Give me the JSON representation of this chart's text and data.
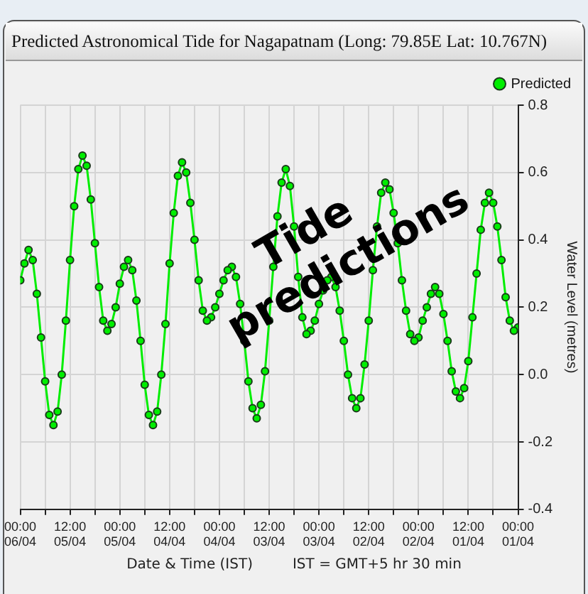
{
  "chart_data": {
    "type": "line",
    "title": "Predicted Astronomical Tide for Nagapatnam (Long: 79.85E  Lat: 10.767N)",
    "xlabel": "Date & Time (IST)",
    "ylabel": "Water Level (metres)",
    "annotations": [
      "IST = GMT+5 hr 30 min",
      "Tide predictions"
    ],
    "x": [
      "--04-01T00:00",
      "--04-01T01:00",
      "--04-01T02:00",
      "--04-01T03:00",
      "--04-01T04:00",
      "--04-01T05:00",
      "--04-01T06:00",
      "--04-01T07:00",
      "--04-01T08:00",
      "--04-01T09:00",
      "--04-01T10:00",
      "--04-01T11:00",
      "--04-01T12:00",
      "--04-01T13:00",
      "--04-01T14:00",
      "--04-01T15:00",
      "--04-01T16:00",
      "--04-01T17:00",
      "--04-01T18:00",
      "--04-01T19:00",
      "--04-01T20:00",
      "--04-01T21:00",
      "--04-01T22:00",
      "--04-01T23:00",
      "--04-02T00:00",
      "--04-02T01:00",
      "--04-02T02:00",
      "--04-02T03:00",
      "--04-02T04:00",
      "--04-02T05:00",
      "--04-02T06:00",
      "--04-02T07:00",
      "--04-02T08:00",
      "--04-02T09:00",
      "--04-02T10:00",
      "--04-02T11:00",
      "--04-02T12:00",
      "--04-02T13:00",
      "--04-02T14:00",
      "--04-02T15:00",
      "--04-02T16:00",
      "--04-02T17:00",
      "--04-02T18:00",
      "--04-02T19:00",
      "--04-02T20:00",
      "--04-02T21:00",
      "--04-02T22:00",
      "--04-02T23:00",
      "--04-03T00:00",
      "--04-03T01:00",
      "--04-03T02:00",
      "--04-03T03:00",
      "--04-03T04:00",
      "--04-03T05:00",
      "--04-03T06:00",
      "--04-03T07:00",
      "--04-03T08:00",
      "--04-03T09:00",
      "--04-03T10:00",
      "--04-03T11:00",
      "--04-03T12:00",
      "--04-03T13:00",
      "--04-03T14:00",
      "--04-03T15:00",
      "--04-03T16:00",
      "--04-03T17:00",
      "--04-03T18:00",
      "--04-03T19:00",
      "--04-03T20:00",
      "--04-03T21:00",
      "--04-03T22:00",
      "--04-03T23:00",
      "--04-04T00:00",
      "--04-04T01:00",
      "--04-04T02:00",
      "--04-04T03:00",
      "--04-04T04:00",
      "--04-04T05:00",
      "--04-04T06:00",
      "--04-04T07:00",
      "--04-04T08:00",
      "--04-04T09:00",
      "--04-04T10:00",
      "--04-04T11:00",
      "--04-04T12:00",
      "--04-04T13:00",
      "--04-04T14:00",
      "--04-04T15:00",
      "--04-04T16:00",
      "--04-04T17:00",
      "--04-04T18:00",
      "--04-04T19:00",
      "--04-04T20:00",
      "--04-04T21:00",
      "--04-04T22:00",
      "--04-04T23:00",
      "--04-05T00:00",
      "--04-05T01:00",
      "--04-05T02:00",
      "--04-05T03:00",
      "--04-05T04:00",
      "--04-05T05:00",
      "--04-05T06:00",
      "--04-05T07:00",
      "--04-05T08:00",
      "--04-05T09:00",
      "--04-05T10:00",
      "--04-05T11:00",
      "--04-05T12:00",
      "--04-05T13:00",
      "--04-05T14:00",
      "--04-05T15:00",
      "--04-05T16:00",
      "--04-05T17:00",
      "--04-05T18:00",
      "--04-05T19:00",
      "--04-05T20:00",
      "--04-05T21:00",
      "--04-05T22:00",
      "--04-05T23:00",
      "--04-06T00:00"
    ],
    "series": [
      {
        "name": "Predicted",
        "color": "#00ee00",
        "values": [
          0.14,
          0.13,
          0.16,
          0.23,
          0.34,
          0.44,
          0.51,
          0.54,
          0.51,
          0.43,
          0.3,
          0.17,
          0.04,
          -0.04,
          -0.07,
          -0.05,
          0.01,
          0.1,
          0.18,
          0.24,
          0.26,
          0.24,
          0.2,
          0.16,
          0.11,
          0.1,
          0.12,
          0.19,
          0.28,
          0.39,
          0.48,
          0.55,
          0.57,
          0.54,
          0.44,
          0.31,
          0.16,
          0.03,
          -0.07,
          -0.1,
          -0.07,
          0.0,
          0.1,
          0.19,
          0.26,
          0.29,
          0.28,
          0.25,
          0.21,
          0.16,
          0.13,
          0.12,
          0.17,
          0.29,
          0.44,
          0.56,
          0.61,
          0.57,
          0.47,
          0.32,
          0.16,
          0.01,
          -0.09,
          -0.13,
          -0.1,
          -0.02,
          0.1,
          0.21,
          0.29,
          0.32,
          0.31,
          0.28,
          0.24,
          0.2,
          0.17,
          0.16,
          0.19,
          0.28,
          0.4,
          0.51,
          0.6,
          0.63,
          0.59,
          0.48,
          0.33,
          0.15,
          0.0,
          -0.11,
          -0.15,
          -0.12,
          -0.03,
          0.1,
          0.22,
          0.31,
          0.34,
          0.32,
          0.27,
          0.2,
          0.15,
          0.13,
          0.16,
          0.26,
          0.39,
          0.52,
          0.62,
          0.65,
          0.61,
          0.5,
          0.34,
          0.16,
          0.0,
          -0.11,
          -0.15,
          -0.12,
          -0.02,
          0.11,
          0.24,
          0.34,
          0.37,
          0.33,
          0.28
        ]
      }
    ],
    "xlim": [
      "--04-06T00:00",
      "--04-01T00:00"
    ],
    "xticks": [
      {
        "value": "--04-06T00:00",
        "label": "00:00\n06/04"
      },
      {
        "value": "--04-05T18:00",
        "label": null
      },
      {
        "value": "--04-05T12:00",
        "label": "12:00\n05/04"
      },
      {
        "value": "--04-05T06:00",
        "label": null
      },
      {
        "value": "--04-05T00:00",
        "label": "00:00\n05/04"
      },
      {
        "value": "--04-04T18:00",
        "label": null
      },
      {
        "value": "--04-04T12:00",
        "label": "12:00\n04/04"
      },
      {
        "value": "--04-04T06:00",
        "label": null
      },
      {
        "value": "--04-04T00:00",
        "label": "00:00\n04/04"
      },
      {
        "value": "--04-03T18:00",
        "label": null
      },
      {
        "value": "--04-03T12:00",
        "label": "12:00\n03/04"
      },
      {
        "value": "--04-03T06:00",
        "label": null
      },
      {
        "value": "--04-03T00:00",
        "label": "00:00\n03/04"
      },
      {
        "value": "--04-02T18:00",
        "label": null
      },
      {
        "value": "--04-02T12:00",
        "label": "12:00\n02/04"
      },
      {
        "value": "--04-02T06:00",
        "label": null
      },
      {
        "value": "--04-02T00:00",
        "label": "00:00\n02/04"
      },
      {
        "value": "--04-01T18:00",
        "label": null
      },
      {
        "value": "--04-01T12:00",
        "label": "12:00\n01/04"
      },
      {
        "value": "--04-01T06:00",
        "label": null
      },
      {
        "value": "--04-01T00:00",
        "label": "00:00\n01/04"
      }
    ],
    "ylim": [
      -0.4,
      0.8
    ],
    "yticks": [
      {
        "value": -0.4,
        "label": "-0.4"
      },
      {
        "value": -0.2,
        "label": "-0.2"
      },
      {
        "value": 0,
        "label": "0.0"
      },
      {
        "value": 0.2,
        "label": "0.2"
      },
      {
        "value": 0.4,
        "label": "0.4"
      },
      {
        "value": 0.6,
        "label": "0.6"
      },
      {
        "value": 0.8,
        "label": "0.8"
      }
    ],
    "grid": true,
    "legend": "top right",
    "marker": "circle",
    "line_style": "solid"
  }
}
